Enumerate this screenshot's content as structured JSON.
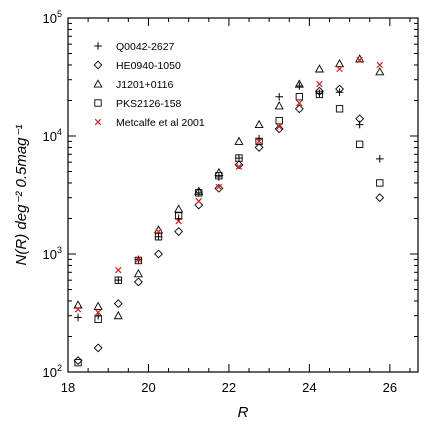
{
  "chart_data": {
    "type": "scatter",
    "title": "",
    "xlabel": "R",
    "ylabel": "N(R) deg⁻² 0.5mag⁻¹",
    "xlim": [
      18,
      26.7
    ],
    "ylim": [
      100,
      100000
    ],
    "yscale": "log",
    "x_ticks": [
      18,
      20,
      22,
      24,
      26
    ],
    "y_ticks": [
      {
        "value": 100,
        "base": "10",
        "exp": "2"
      },
      {
        "value": 1000,
        "base": "10",
        "exp": "3"
      },
      {
        "value": 10000,
        "base": "10",
        "exp": "4"
      },
      {
        "value": 100000,
        "base": "10",
        "exp": "5"
      }
    ],
    "legend_position": "top-left",
    "series": [
      {
        "name": "Q0042-2627",
        "marker": "plus",
        "color": "#000000",
        "x": [
          18.25,
          18.75,
          19.25,
          19.75,
          20.25,
          20.75,
          21.25,
          21.75,
          22.25,
          22.75,
          23.25,
          23.75,
          24.25,
          24.75,
          25.25,
          25.75
        ],
        "y": [
          290,
          300,
          600,
          900,
          1400,
          2000,
          3300,
          4500,
          6500,
          9500,
          21500,
          26500,
          23000,
          23500,
          12500,
          6400
        ]
      },
      {
        "name": "HE0940-1050",
        "marker": "diamond",
        "color": "#000000",
        "x": [
          18.25,
          18.75,
          19.25,
          19.75,
          20.25,
          20.75,
          21.25,
          21.75,
          22.25,
          22.75,
          23.25,
          23.75,
          24.25,
          24.75,
          25.25,
          25.75
        ],
        "y": [
          125,
          160,
          380,
          580,
          1000,
          1550,
          2600,
          3600,
          5700,
          8000,
          11500,
          17000,
          24000,
          25000,
          14000,
          3000
        ]
      },
      {
        "name": "J1201+0116",
        "marker": "triangle",
        "color": "#000000",
        "x": [
          18.25,
          18.75,
          19.25,
          19.75,
          20.25,
          20.75,
          21.25,
          21.75,
          22.25,
          22.75,
          23.25,
          23.75,
          24.25,
          24.75,
          25.25,
          25.75
        ],
        "y": [
          370,
          360,
          300,
          680,
          1600,
          2400,
          3400,
          4900,
          9000,
          12500,
          18000,
          27500,
          37000,
          41000,
          45000,
          35000
        ]
      },
      {
        "name": "PKS2126-158",
        "marker": "square",
        "color": "#000000",
        "x": [
          18.25,
          18.75,
          19.25,
          19.75,
          20.25,
          20.75,
          21.25,
          21.75,
          22.25,
          22.75,
          23.25,
          23.75,
          24.25,
          24.75,
          25.25,
          25.75
        ],
        "y": [
          120,
          280,
          600,
          880,
          1400,
          2100,
          3300,
          4600,
          6500,
          9000,
          13500,
          21500,
          22500,
          17000,
          8500,
          4000
        ]
      },
      {
        "name": "Metcalfe et al 2001",
        "marker": "cross",
        "color": "#cc2222",
        "x": [
          18.25,
          18.75,
          19.25,
          19.75,
          20.25,
          20.75,
          21.25,
          21.75,
          22.25,
          22.75,
          23.25,
          23.75,
          24.25,
          24.75,
          25.25,
          25.75
        ],
        "y": [
          340,
          320,
          730,
          900,
          1550,
          1900,
          2800,
          3700,
          5500,
          9000,
          12000,
          19000,
          27500,
          37000,
          44000,
          40000
        ]
      }
    ]
  }
}
